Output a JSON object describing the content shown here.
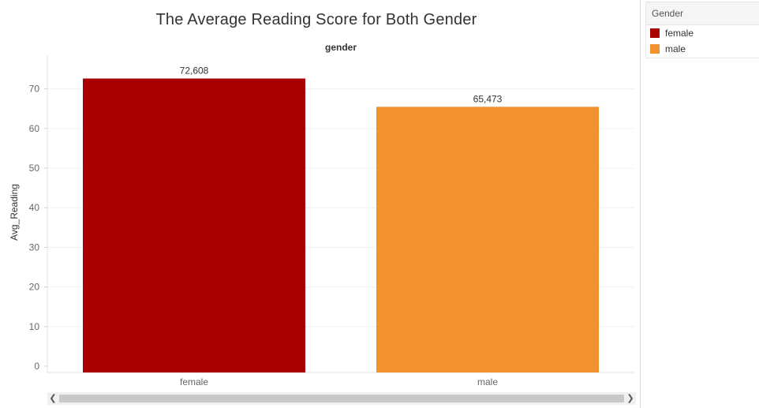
{
  "chart_data": {
    "type": "bar",
    "title": "The Average Reading Score for Both Gender",
    "column_header": "gender",
    "ylabel": "Avg_Reading",
    "xlabel": "",
    "categories": [
      "female",
      "male"
    ],
    "values": [
      72.608,
      65.473
    ],
    "data_labels": [
      "72,608",
      "65,473"
    ],
    "colors": [
      "#a80000",
      "#f39130"
    ],
    "ylim": [
      0,
      73.8
    ],
    "yticks": [
      0,
      10,
      20,
      30,
      40,
      50,
      60,
      70
    ],
    "grid": true,
    "legend_position": "right"
  },
  "legend": {
    "title": "Gender",
    "items": [
      {
        "label": "female",
        "color": "#a80000"
      },
      {
        "label": "male",
        "color": "#f39130"
      }
    ]
  },
  "scrollbar": {
    "left_arrow": "❮",
    "right_arrow": "❯"
  }
}
